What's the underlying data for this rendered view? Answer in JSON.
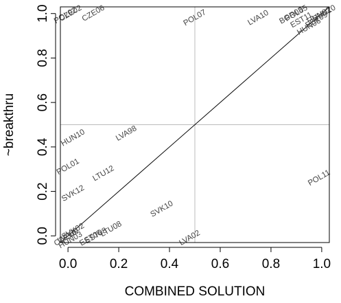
{
  "chart_data": {
    "type": "scatter",
    "xlabel": "COMBINED SOLUTION",
    "ylabel": "~breakthru",
    "xlim": [
      -0.03,
      1.03
    ],
    "ylim": [
      -0.03,
      1.03
    ],
    "xticks": [
      "0.0",
      "0.2",
      "0.4",
      "0.6",
      "0.8",
      "1.0"
    ],
    "yticks": [
      "0.0",
      "0.2",
      "0.4",
      "0.6",
      "0.8",
      "1.0"
    ],
    "x_tick_values": [
      0,
      0.2,
      0.4,
      0.6,
      0.8,
      1.0
    ],
    "y_tick_values": [
      0,
      0.2,
      0.4,
      0.6,
      0.8,
      1.0
    ],
    "reference_lines": {
      "vertical": 0.5,
      "horizontal": 0.5,
      "diagonal": "y = x"
    },
    "colors": {
      "points": "#444444",
      "reference": "#bbbbbb",
      "diagonal": "#000000",
      "axes": "#000000"
    },
    "points": [
      {
        "label": "CZE02",
        "x": 0.01,
        "y": 1.0
      },
      {
        "label": "POL02",
        "x": -0.01,
        "y": 0.99
      },
      {
        "label": "CZE06",
        "x": 0.1,
        "y": 1.0
      },
      {
        "label": "POL07",
        "x": 0.5,
        "y": 0.98
      },
      {
        "label": "LVA10",
        "x": 0.75,
        "y": 0.98
      },
      {
        "label": "BGR03",
        "x": 0.88,
        "y": 0.99
      },
      {
        "label": "POL05",
        "x": 0.9,
        "y": 1.0
      },
      {
        "label": "EST11",
        "x": 0.92,
        "y": 0.97
      },
      {
        "label": "HUN06",
        "x": 0.95,
        "y": 0.94
      },
      {
        "label": "EST09",
        "x": 0.98,
        "y": 0.97
      },
      {
        "label": "HUN02",
        "x": 0.99,
        "y": 0.99
      },
      {
        "label": "SVN10",
        "x": 1.01,
        "y": 1.0
      },
      {
        "label": "HUN10",
        "x": 0.02,
        "y": 0.44
      },
      {
        "label": "LVA98",
        "x": 0.23,
        "y": 0.46
      },
      {
        "label": "POL01",
        "x": 0.0,
        "y": 0.31
      },
      {
        "label": "LTU12",
        "x": 0.14,
        "y": 0.28
      },
      {
        "label": "SVK12",
        "x": 0.02,
        "y": 0.19
      },
      {
        "label": "POL11",
        "x": 0.99,
        "y": 0.26
      },
      {
        "label": "SVK10",
        "x": 0.37,
        "y": 0.12
      },
      {
        "label": "LTU08",
        "x": 0.17,
        "y": 0.03
      },
      {
        "label": "EST08",
        "x": 0.11,
        "y": 0.0
      },
      {
        "label": "EST06",
        "x": 0.09,
        "y": -0.01
      },
      {
        "label": "SVK02",
        "x": 0.02,
        "y": 0.02
      },
      {
        "label": "LVA02",
        "x": 0.48,
        "y": -0.01
      },
      {
        "label": "HUN03",
        "x": 0.01,
        "y": -0.02
      },
      {
        "label": "LVA00",
        "x": 0.0,
        "y": 0.0
      },
      {
        "label": "CZE10",
        "x": -0.01,
        "y": -0.01
      }
    ]
  }
}
